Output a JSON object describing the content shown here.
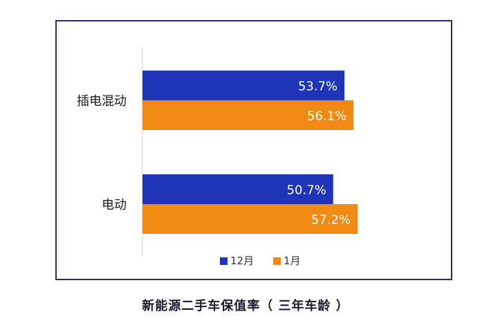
{
  "caption": "新能源二手车保值率（ 三年车龄 ）",
  "chart_data": {
    "type": "bar",
    "orientation": "horizontal",
    "title": "",
    "categories": [
      "插电混动",
      "电动"
    ],
    "series": [
      {
        "name": "12月",
        "values": [
          53.7,
          50.7
        ],
        "labels": [
          "53.7%",
          "50.7%"
        ],
        "color": "#1f35b8"
      },
      {
        "name": "1月",
        "values": [
          56.1,
          57.2
        ],
        "labels": [
          "56.1%",
          "57.2%"
        ],
        "color": "#f08a12"
      }
    ],
    "xlim": [
      0,
      100
    ],
    "grid": false,
    "legend_position": "bottom"
  }
}
